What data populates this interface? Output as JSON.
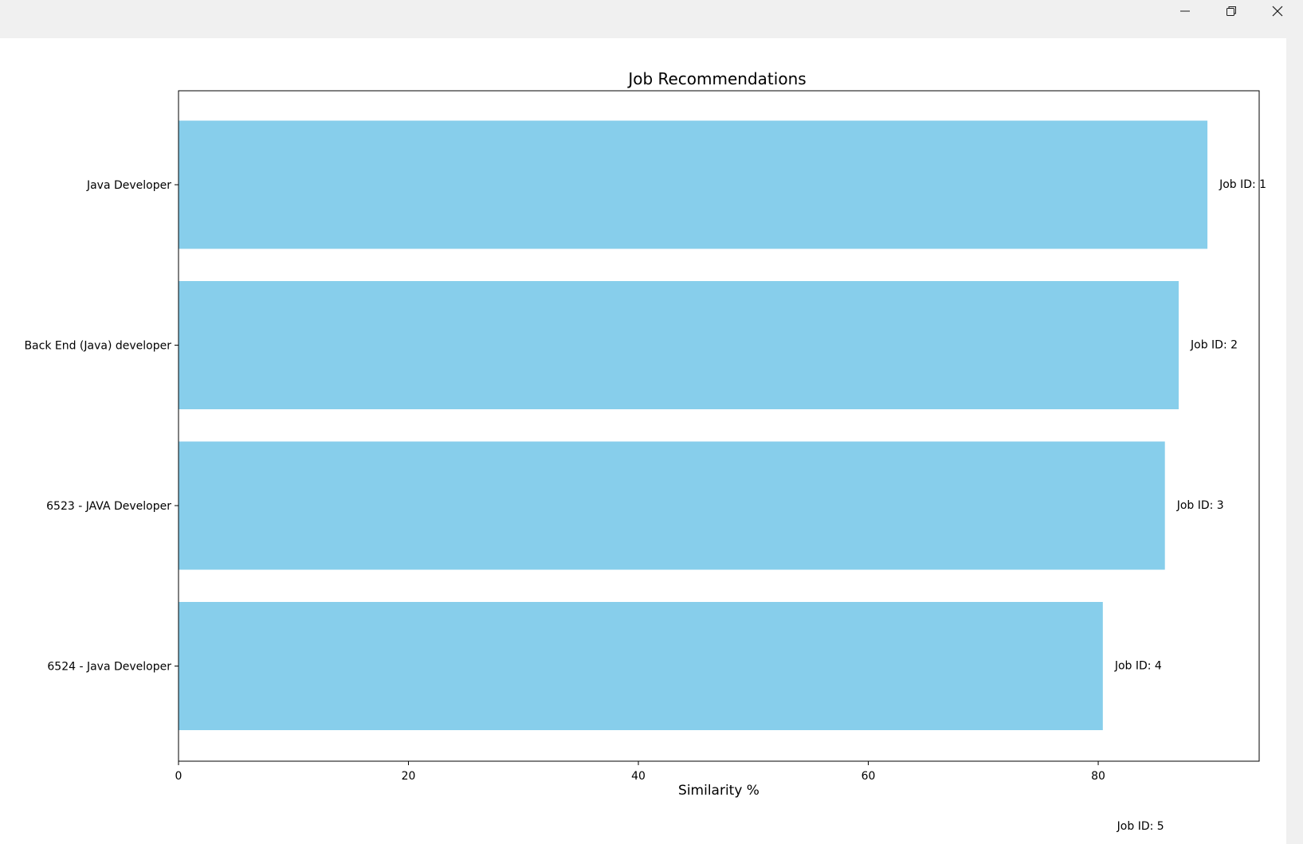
{
  "window": {
    "minimize_icon": "minimize-icon",
    "maximize_icon": "restore-icon",
    "close_icon": "close-icon"
  },
  "colors": {
    "bar": "#87ceeb",
    "axis": "#000000",
    "window_chrome": "#f0f0f0",
    "canvas": "#ffffff"
  },
  "chart_data": {
    "type": "bar",
    "orientation": "horizontal",
    "title": "Job Recommendations",
    "xlabel": "Similarity %",
    "ylabel": "",
    "categories": [
      "Java Developer",
      "Back End (Java) developer",
      "6523 - JAVA Developer",
      "6524 - Java Developer"
    ],
    "values": [
      89.5,
      87.0,
      85.8,
      80.4
    ],
    "bar_labels": [
      "Job ID: 1",
      "Job ID: 2",
      "Job ID: 3",
      "Job ID: 4"
    ],
    "extra_label": {
      "text": "Job ID: 5",
      "x": 81.5
    },
    "xlim": [
      0,
      94
    ],
    "xticks": [
      0,
      20,
      40,
      60,
      80
    ],
    "grid": false
  }
}
